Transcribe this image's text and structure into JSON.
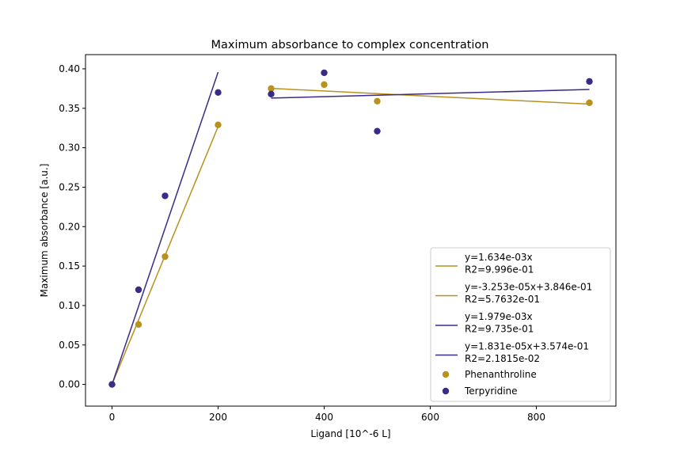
{
  "chart_data": {
    "type": "scatter",
    "title": "Maximum absorbance to complex concentration",
    "xlabel": "Ligand [10^-6 L]",
    "ylabel": "Maximum absorbance [a.u.]",
    "xlim": [
      -50,
      950
    ],
    "ylim": [
      -0.0275,
      0.418
    ],
    "xticks": [
      0,
      200,
      400,
      600,
      800
    ],
    "yticks": [
      0.0,
      0.05,
      0.1,
      0.15,
      0.2,
      0.25,
      0.3,
      0.35,
      0.4
    ],
    "xtick_labels": [
      "0",
      "200",
      "400",
      "600",
      "800"
    ],
    "ytick_labels": [
      "0.00",
      "0.05",
      "0.10",
      "0.15",
      "0.20",
      "0.25",
      "0.30",
      "0.35",
      "0.40"
    ],
    "grid": false,
    "legend_placement": "lower-right",
    "colors": {
      "phenanthroline": "#b8911f",
      "terpyridine": "#3b2a87"
    },
    "scatter_series": [
      {
        "name": "Phenanthroline",
        "color": "#b8911f",
        "x": [
          0,
          50,
          100,
          200,
          300,
          400,
          500,
          900
        ],
        "y": [
          0.0,
          0.076,
          0.162,
          0.329,
          0.375,
          0.38,
          0.359,
          0.357
        ]
      },
      {
        "name": "Terpyridine",
        "color": "#3b2a87",
        "x": [
          0,
          50,
          100,
          200,
          300,
          400,
          500,
          900
        ],
        "y": [
          0.0,
          0.12,
          0.239,
          0.37,
          0.368,
          0.395,
          0.321,
          0.384
        ]
      }
    ],
    "fit_lines": [
      {
        "legend": [
          "y=1.634e-03x",
          "R2=9.996e-01"
        ],
        "color": "#b8911f",
        "x": [
          0,
          200
        ],
        "y": [
          0.0,
          0.3268
        ]
      },
      {
        "legend": [
          "y=-3.253e-05x+3.846e-01",
          "R2=5.7632e-01"
        ],
        "color": "#b8911f",
        "x": [
          300,
          900
        ],
        "y": [
          0.3752,
          0.3553
        ]
      },
      {
        "legend": [
          "y=1.979e-03x",
          "R2=9.735e-01"
        ],
        "color": "#3b2a87",
        "x": [
          0,
          200
        ],
        "y": [
          0.0,
          0.3958
        ]
      },
      {
        "legend": [
          "y=1.831e-05x+3.574e-01",
          "R2=2.1815e-02"
        ],
        "color": "#3b2a87",
        "x": [
          300,
          900
        ],
        "y": [
          0.3629,
          0.3739
        ]
      }
    ]
  }
}
